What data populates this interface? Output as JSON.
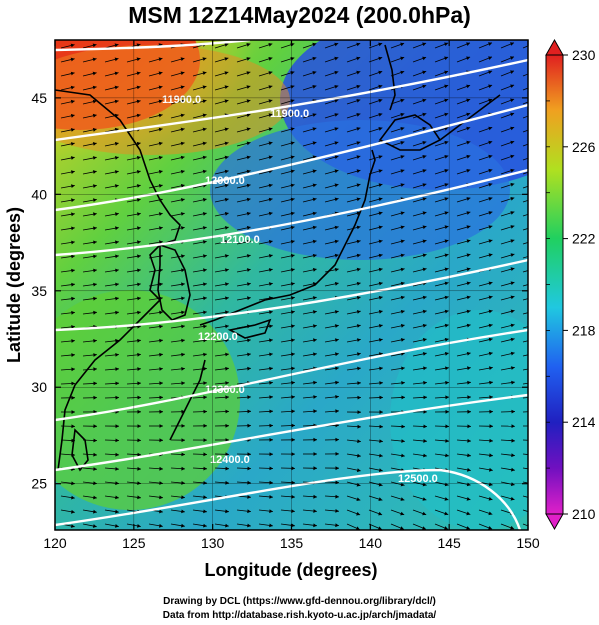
{
  "title": "MSM 12Z14May2024 (200.0hPa)",
  "x_axis": {
    "label": "Longitude (degrees)",
    "ticks": [
      "120",
      "125",
      "130",
      "135",
      "140",
      "145",
      "150"
    ]
  },
  "y_axis": {
    "label": "Latitude  (degrees)",
    "ticks": [
      "25",
      "30",
      "35",
      "40",
      "45"
    ]
  },
  "colorbar": {
    "ticks": [
      "210",
      "214",
      "218",
      "222",
      "226",
      "230"
    ],
    "range": [
      210,
      230
    ],
    "colors": [
      "#e020c8",
      "#4010c0",
      "#2040e0",
      "#20c0e0",
      "#20d060",
      "#e0e020",
      "#f08020",
      "#e02020"
    ]
  },
  "contour_labels": [
    "11900.0",
    "11900.0",
    "12000.0",
    "12100.0",
    "12200.0",
    "12300.0",
    "12400.0",
    "12500.0"
  ],
  "credits": {
    "line1": "Drawing by DCL (https://www.gfd-dennou.org/library/dcl/)",
    "line2": "Data from http://database.rish.kyoto-u.ac.jp/arch/jmadata/"
  },
  "map": {
    "lon_range": [
      120,
      150
    ],
    "lat_range": [
      22.6,
      48
    ],
    "field": "temperature",
    "overlays": [
      "wind-vectors",
      "geopotential-height-contours",
      "coastlines"
    ]
  }
}
